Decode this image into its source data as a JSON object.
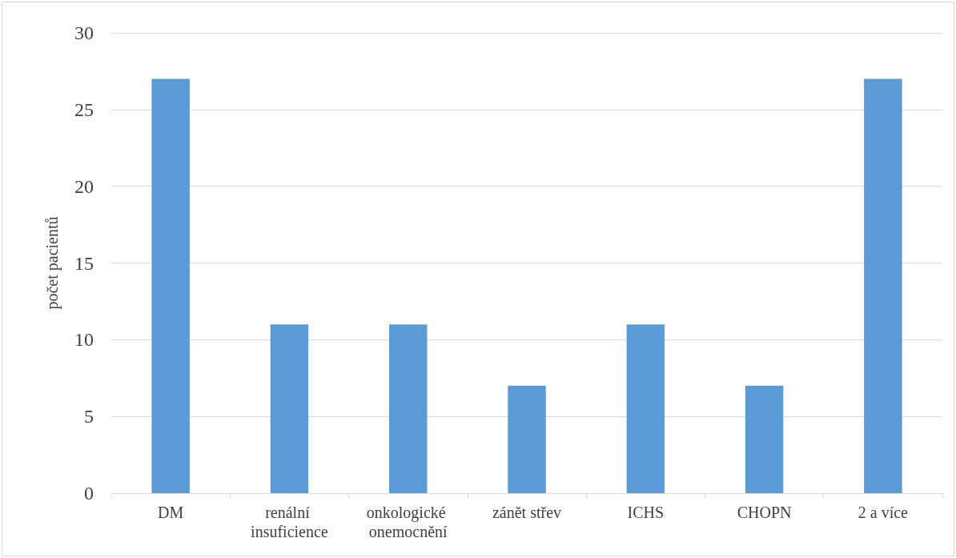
{
  "chart_data": {
    "type": "bar",
    "ylabel": "počet pacientů",
    "categories": [
      "DM",
      "renální insuficience",
      "onkologické onemocnění",
      "zánět střev",
      "ICHS",
      "CHOPN",
      "2 a více"
    ],
    "values": [
      27,
      11,
      11,
      7,
      11,
      7,
      27
    ],
    "color": "#5b9bd5",
    "ylim": [
      0,
      30
    ],
    "yticks": [
      0,
      5,
      10,
      15,
      20,
      25,
      30
    ],
    "grid": "y"
  }
}
